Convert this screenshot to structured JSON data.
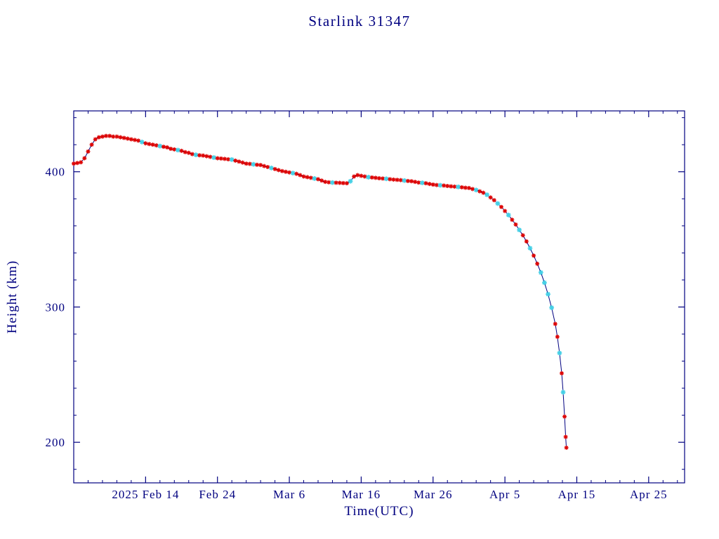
{
  "title": "Starlink 31347",
  "axes": {
    "xlabel": "Time(UTC)",
    "ylabel": "Height (km)"
  },
  "colors": {
    "axis": "#000080",
    "line": "#000080",
    "marker_red": "#dd0000",
    "marker_cyan": "#45d0e6",
    "background": "#ffffff"
  },
  "chart_data": {
    "type": "line",
    "title": "Starlink 31347",
    "xlabel": "Time(UTC)",
    "ylabel": "Height (km)",
    "x_unit": "days from left edge of axis (axis starts 2025 Feb 4)",
    "xlim": [
      0,
      85
    ],
    "ylim": [
      170,
      445
    ],
    "grid": false,
    "legend": "none",
    "xticks": [
      {
        "t": 10,
        "label": "2025 Feb 14"
      },
      {
        "t": 20,
        "label": "Feb 24"
      },
      {
        "t": 30,
        "label": "Mar 6"
      },
      {
        "t": 40,
        "label": "Mar 16"
      },
      {
        "t": 50,
        "label": "Mar 26"
      },
      {
        "t": 60,
        "label": "Apr 5"
      },
      {
        "t": 70,
        "label": "Apr 15"
      },
      {
        "t": 80,
        "label": "Apr 25"
      }
    ],
    "yticks": [
      {
        "v": 200,
        "label": "200"
      },
      {
        "v": 300,
        "label": "300"
      },
      {
        "v": 400,
        "label": "400"
      }
    ],
    "minor_x_step": 2,
    "minor_y_step": 20,
    "series_note": "points are [t_days, height_km, colorflag]; colorflag 0 = red marker, 1 = cyan marker; navy line connects all points",
    "points": [
      [
        0,
        406,
        0
      ],
      [
        0.5,
        406.5,
        0
      ],
      [
        1,
        407,
        0
      ],
      [
        1.5,
        410,
        0
      ],
      [
        2,
        415,
        0
      ],
      [
        2.5,
        420,
        0
      ],
      [
        3,
        424,
        0
      ],
      [
        3.5,
        425.5,
        0
      ],
      [
        4,
        426,
        0
      ],
      [
        4.5,
        426.5,
        0
      ],
      [
        5,
        426.5,
        0
      ],
      [
        5.5,
        426,
        0
      ],
      [
        6,
        426,
        0
      ],
      [
        6.5,
        425.5,
        0
      ],
      [
        7,
        425,
        0
      ],
      [
        7.5,
        424.5,
        0
      ],
      [
        8,
        424,
        0
      ],
      [
        8.5,
        423.5,
        0
      ],
      [
        9,
        423,
        0
      ],
      [
        9.5,
        422,
        1
      ],
      [
        10,
        421,
        0
      ],
      [
        10.5,
        420.5,
        0
      ],
      [
        11,
        420,
        0
      ],
      [
        11.5,
        419.5,
        0
      ],
      [
        12,
        419,
        1
      ],
      [
        12.5,
        418.5,
        0
      ],
      [
        13,
        418,
        0
      ],
      [
        13.5,
        417,
        0
      ],
      [
        14,
        416.5,
        0
      ],
      [
        14.5,
        416,
        1
      ],
      [
        15,
        415.5,
        0
      ],
      [
        15.5,
        414.5,
        0
      ],
      [
        16,
        414,
        0
      ],
      [
        16.5,
        413,
        0
      ],
      [
        17,
        412.5,
        1
      ],
      [
        17.5,
        412.2,
        0
      ],
      [
        18,
        412,
        0
      ],
      [
        18.5,
        411.5,
        0
      ],
      [
        19,
        411,
        0
      ],
      [
        19.5,
        410.5,
        1
      ],
      [
        20,
        410,
        0
      ],
      [
        20.5,
        409.8,
        0
      ],
      [
        21,
        409.5,
        0
      ],
      [
        21.5,
        409.2,
        0
      ],
      [
        22,
        409,
        1
      ],
      [
        22.5,
        408.2,
        0
      ],
      [
        23,
        407.5,
        0
      ],
      [
        23.5,
        406.8,
        0
      ],
      [
        24,
        406,
        0
      ],
      [
        24.5,
        405.8,
        0
      ],
      [
        25,
        405.5,
        1
      ],
      [
        25.5,
        405.2,
        0
      ],
      [
        26,
        405,
        0
      ],
      [
        26.5,
        404.2,
        0
      ],
      [
        27,
        403.5,
        0
      ],
      [
        27.5,
        402.8,
        1
      ],
      [
        28,
        402,
        0
      ],
      [
        28.5,
        401.2,
        0
      ],
      [
        29,
        400.5,
        0
      ],
      [
        29.5,
        400,
        0
      ],
      [
        30,
        399.5,
        0
      ],
      [
        30.5,
        399,
        1
      ],
      [
        31,
        398.5,
        0
      ],
      [
        31.5,
        397.5,
        0
      ],
      [
        32,
        396.5,
        0
      ],
      [
        32.5,
        396,
        0
      ],
      [
        33,
        395.5,
        0
      ],
      [
        33.5,
        395,
        1
      ],
      [
        34,
        394.5,
        0
      ],
      [
        34.5,
        393.5,
        0
      ],
      [
        35,
        392.5,
        0
      ],
      [
        35.5,
        392.2,
        0
      ],
      [
        36,
        392,
        1
      ],
      [
        36.5,
        391.9,
        0
      ],
      [
        37,
        391.8,
        0
      ],
      [
        37.5,
        391.6,
        0
      ],
      [
        38,
        391.5,
        0
      ],
      [
        38.5,
        393,
        1
      ],
      [
        39,
        396.5,
        0
      ],
      [
        39.5,
        397.5,
        0
      ],
      [
        40,
        397,
        0
      ],
      [
        40.5,
        396.5,
        0
      ],
      [
        41,
        396,
        1
      ],
      [
        41.5,
        395.8,
        0
      ],
      [
        42,
        395.5,
        0
      ],
      [
        42.5,
        395.2,
        0
      ],
      [
        43,
        395,
        0
      ],
      [
        43.5,
        394.8,
        1
      ],
      [
        44,
        394.5,
        0
      ],
      [
        44.5,
        394.2,
        0
      ],
      [
        45,
        394,
        0
      ],
      [
        45.5,
        393.8,
        0
      ],
      [
        46,
        393.5,
        1
      ],
      [
        46.5,
        393.2,
        0
      ],
      [
        47,
        393,
        0
      ],
      [
        47.5,
        392.5,
        0
      ],
      [
        48,
        392,
        0
      ],
      [
        48.5,
        391.8,
        1
      ],
      [
        49,
        391.5,
        0
      ],
      [
        49.5,
        391,
        0
      ],
      [
        50,
        390.5,
        0
      ],
      [
        50.5,
        390.2,
        0
      ],
      [
        51,
        390,
        1
      ],
      [
        51.5,
        389.8,
        0
      ],
      [
        52,
        389.5,
        0
      ],
      [
        52.5,
        389.2,
        0
      ],
      [
        53,
        389,
        0
      ],
      [
        53.5,
        388.8,
        1
      ],
      [
        54,
        388.5,
        0
      ],
      [
        54.5,
        388.2,
        0
      ],
      [
        55,
        388,
        0
      ],
      [
        55.5,
        387.2,
        0
      ],
      [
        56,
        386.5,
        1
      ],
      [
        56.5,
        385.5,
        0
      ],
      [
        57,
        384.5,
        0
      ],
      [
        57.5,
        383,
        1
      ],
      [
        58,
        381,
        0
      ],
      [
        58.5,
        379,
        0
      ],
      [
        59,
        376.5,
        1
      ],
      [
        59.5,
        374,
        0
      ],
      [
        60,
        371,
        0
      ],
      [
        60.5,
        368,
        1
      ],
      [
        61,
        364.5,
        0
      ],
      [
        61.5,
        361,
        0
      ],
      [
        62,
        357,
        1
      ],
      [
        62.5,
        353,
        0
      ],
      [
        63,
        348.5,
        0
      ],
      [
        63.5,
        343.5,
        1
      ],
      [
        64,
        338,
        0
      ],
      [
        64.5,
        332,
        0
      ],
      [
        65,
        325.5,
        1
      ],
      [
        65.5,
        318,
        1
      ],
      [
        66,
        309.5,
        1
      ],
      [
        66.5,
        299.5,
        1
      ],
      [
        67,
        287.5,
        0
      ],
      [
        67.3,
        278,
        0
      ],
      [
        67.6,
        266,
        1
      ],
      [
        67.9,
        251,
        0
      ],
      [
        68.1,
        237,
        1
      ],
      [
        68.3,
        219,
        0
      ],
      [
        68.45,
        204,
        0
      ],
      [
        68.55,
        196,
        0
      ]
    ]
  }
}
